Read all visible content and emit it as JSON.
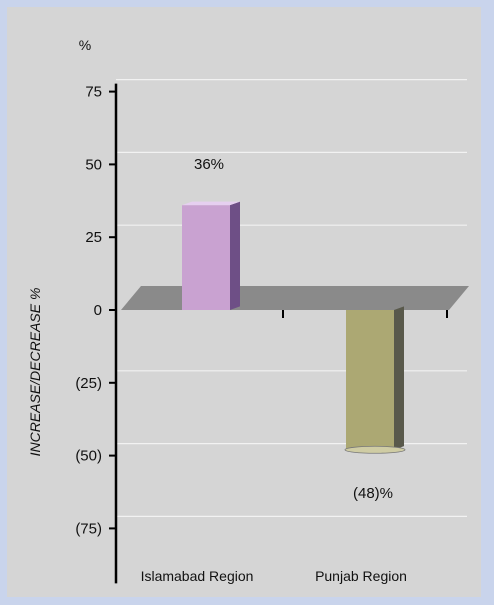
{
  "chart_data": {
    "type": "bar",
    "title": "",
    "unit_label": "%",
    "ylabel": "INCREASE/DECREASE %",
    "xlabel": "",
    "categories": [
      "Islamabad Region",
      "Punjab Region"
    ],
    "values": [
      36,
      -48
    ],
    "data_labels": [
      "36%",
      "(48)%"
    ],
    "ylim": [
      -75,
      75
    ],
    "y_ticks": [
      75,
      50,
      25,
      0,
      -25,
      -50,
      -75
    ],
    "y_tick_labels": [
      "75",
      "50",
      "25",
      "0",
      "(25)",
      "(50)",
      "(75)"
    ],
    "grid": true,
    "colors": {
      "panel": "#d5d5d5",
      "background": "#c9d4ec",
      "floor": "#8a8a8a",
      "gridline": "#f2f2f2",
      "series": [
        {
          "front": "#c9a2d1",
          "side": "#6e4f86",
          "top": "#e6cff0"
        },
        {
          "front": "#aca873",
          "side": "#59594b",
          "top": "#cfcca4"
        }
      ]
    }
  }
}
